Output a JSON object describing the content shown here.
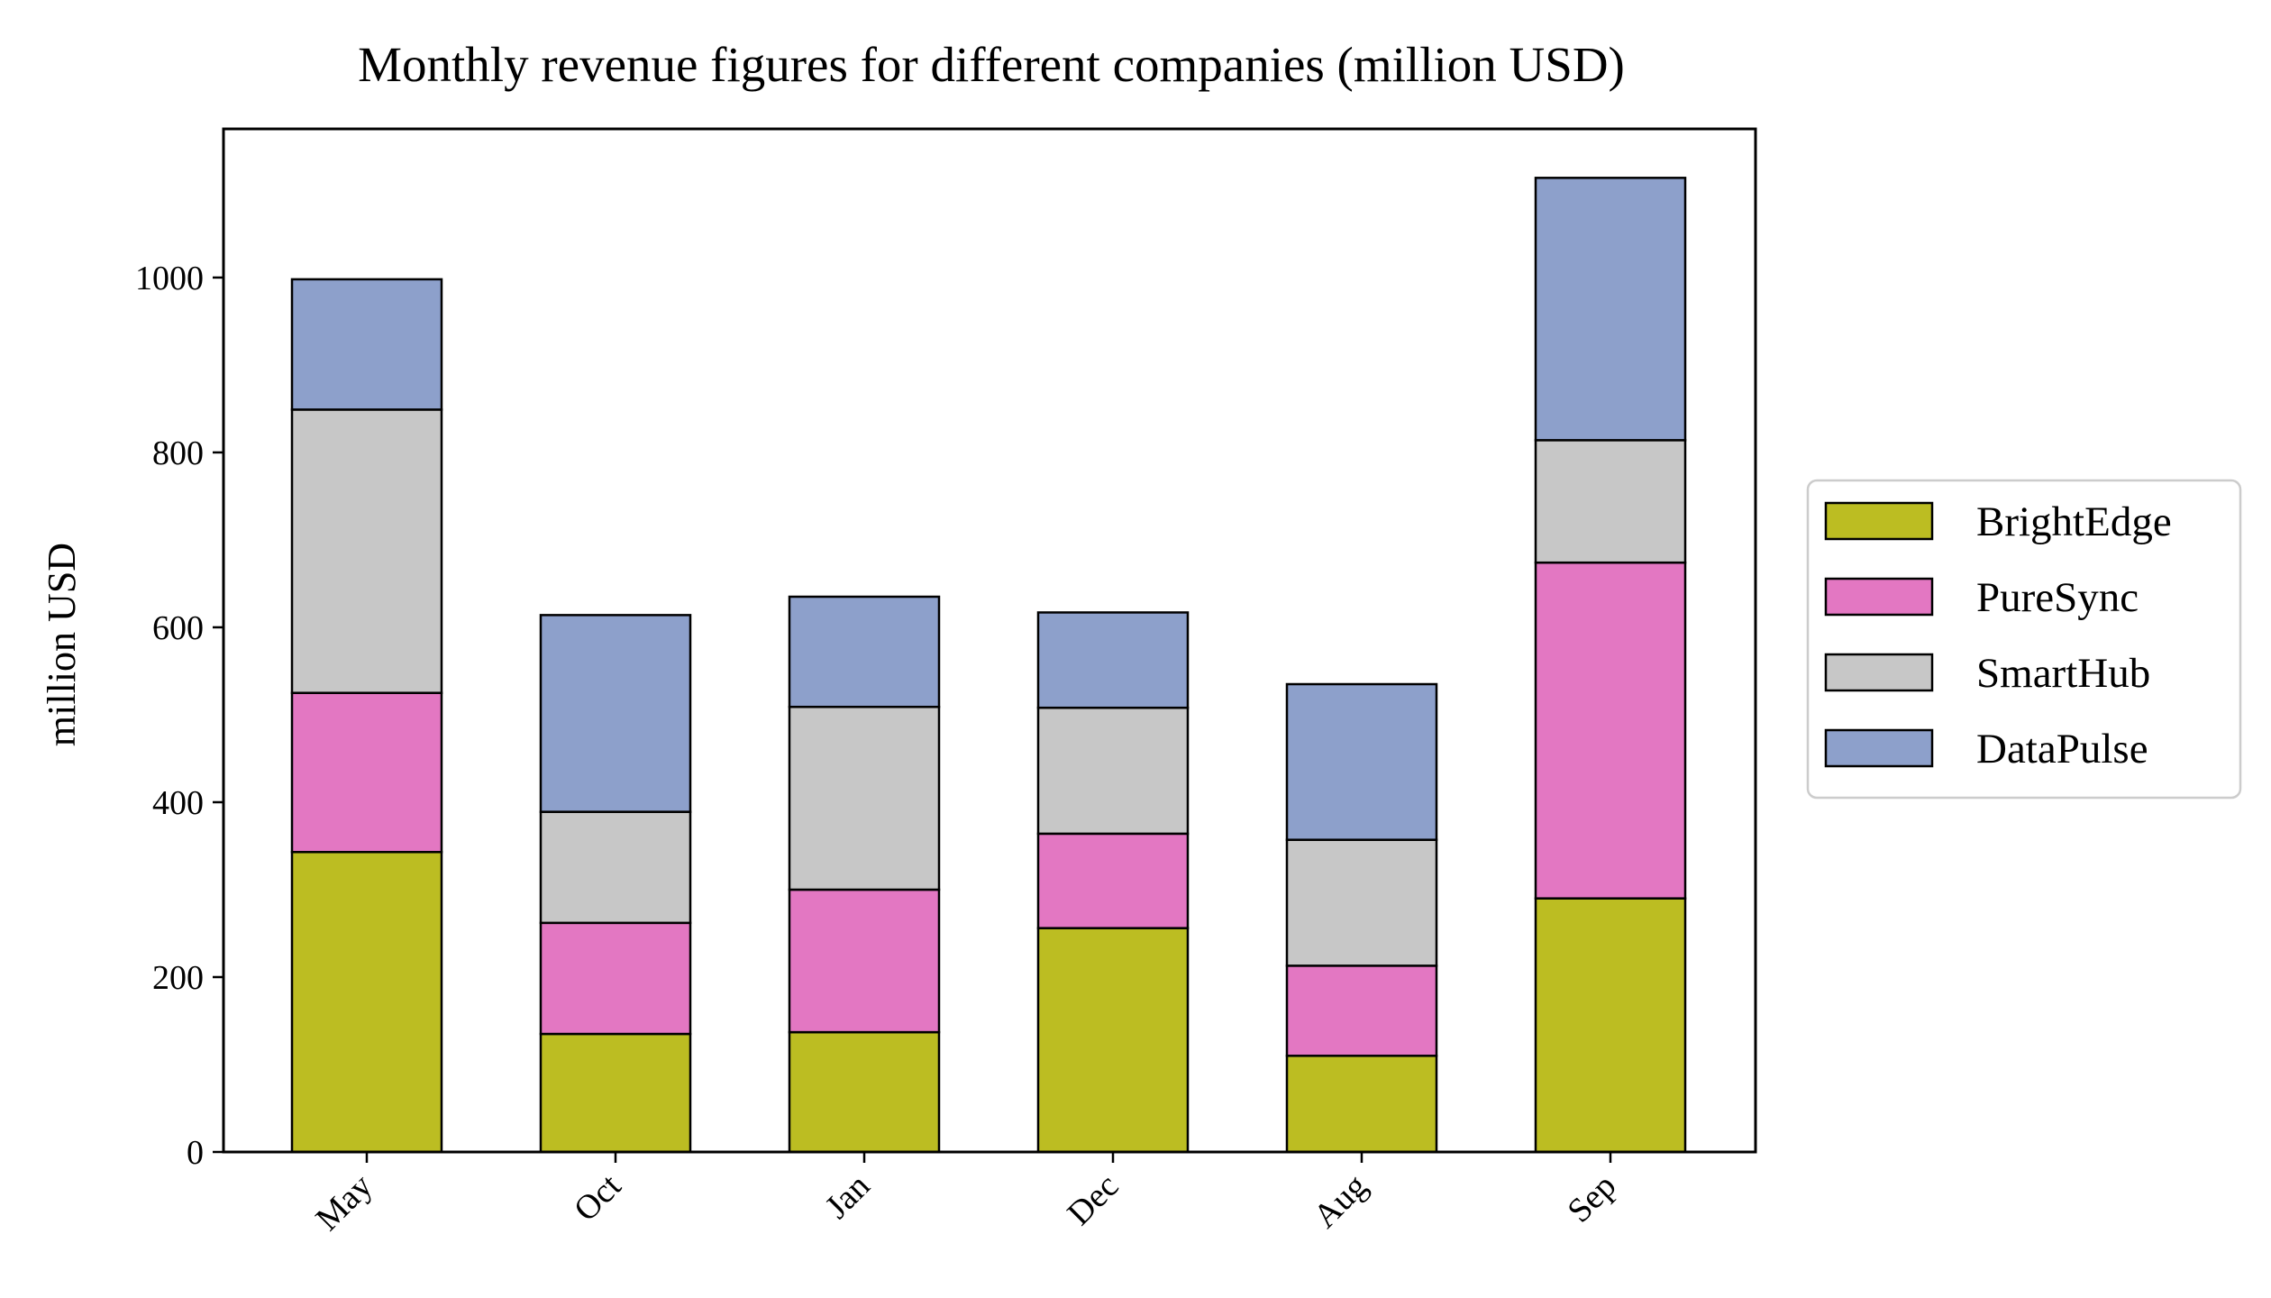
{
  "chart_data": {
    "type": "bar",
    "stacked": true,
    "title": "Monthly revenue figures for different companies (million USD)",
    "xlabel": "",
    "ylabel": "million USD",
    "categories": [
      "May",
      "Oct",
      "Jan",
      "Dec",
      "Aug",
      "Sep"
    ],
    "ylim": [
      0,
      1170
    ],
    "yticks": [
      0,
      200,
      400,
      600,
      800,
      1000
    ],
    "series": [
      {
        "name": "BrightEdge",
        "color": "#bcbd22",
        "values": [
          343,
          135,
          137,
          256,
          110,
          290
        ]
      },
      {
        "name": "PureSync",
        "color": "#e377c2",
        "values": [
          182,
          127,
          163,
          108,
          103,
          384
        ]
      },
      {
        "name": "SmartHub",
        "color": "#c7c7c7",
        "values": [
          324,
          127,
          209,
          144,
          144,
          140
        ]
      },
      {
        "name": "DataPulse",
        "color": "#8da0cb",
        "values": [
          149,
          225,
          126,
          109,
          178,
          300
        ]
      }
    ],
    "legend_position": "right",
    "grid": false
  }
}
